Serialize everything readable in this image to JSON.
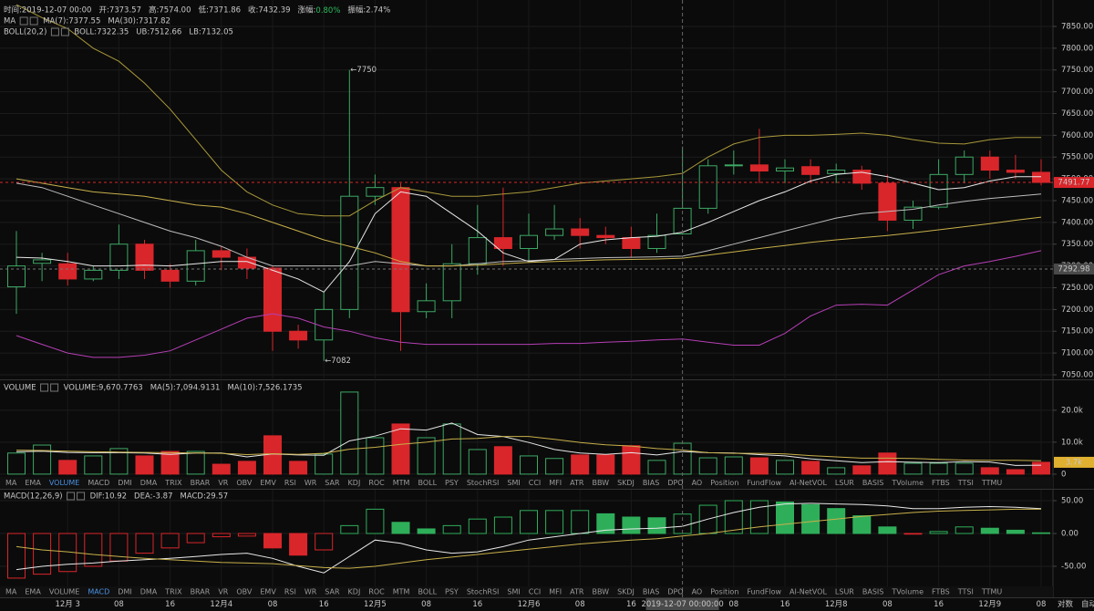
{
  "chart_data": [
    {
      "type": "candlestick",
      "info_rows": [
        [
          {
            "text": "时间:2019-12-07 00:00",
            "color": "#d8d8d8"
          },
          {
            "text": "开:7373.57",
            "color": "#d8d8d8"
          },
          {
            "text": "高:7574.00",
            "color": "#d8d8d8"
          },
          {
            "text": "低:7371.86",
            "color": "#d8d8d8"
          },
          {
            "text": "收:7432.39",
            "color": "#d8d8d8"
          },
          {
            "text": "涨幅:",
            "value": "0.80%",
            "color": "#d8d8d8",
            "value_color": "#2ebd5e"
          },
          {
            "text": "振幅:2.74%",
            "color": "#d8d8d8"
          }
        ],
        [
          {
            "text": "MA",
            "color": "#d8d8d8"
          },
          {
            "text": "MA(7):7377.55",
            "color": "#d8d8d8"
          },
          {
            "text": "MA(30):7317.82",
            "color": "#e0c050"
          }
        ],
        [
          {
            "text": "BOLL(20,2)",
            "color": "#d8d8d8"
          },
          {
            "text": "BOLL:7322.35",
            "color": "#d8d8d8"
          },
          {
            "text": "UB:7512.66",
            "color": "#e0c050"
          },
          {
            "text": "LB:7132.05",
            "color": "#c94fc9"
          }
        ]
      ],
      "categories": [
        null,
        null,
        "12月 3",
        null,
        "08",
        null,
        "16",
        null,
        "12月4",
        null,
        "08",
        null,
        "16",
        null,
        "12月5",
        null,
        "08",
        null,
        "16",
        null,
        "12月6",
        null,
        "08",
        null,
        "16",
        null,
        "2019-12-07 00:00:00",
        null,
        "08",
        null,
        "16",
        null,
        "12月8",
        null,
        "08",
        null,
        "16",
        null,
        "12月9",
        null,
        "08"
      ],
      "open": [
        7252,
        7306,
        7305,
        7270,
        7290,
        7350,
        7290,
        7265,
        7335,
        7320,
        7295,
        7150,
        7130,
        7200,
        7460,
        7480,
        7195,
        7220,
        7305,
        7365,
        7340,
        7370,
        7385,
        7370,
        7365,
        7340,
        7373.57,
        7432.39,
        7530,
        7532,
        7518,
        7528,
        7512,
        7520,
        7490,
        7405,
        7435,
        7510,
        7550,
        7520,
        7515
      ],
      "high": [
        7380,
        7330,
        7330,
        7300,
        7395,
        7360,
        7305,
        7360,
        7345,
        7340,
        7300,
        7165,
        7240,
        7750,
        7510,
        7490,
        7260,
        7350,
        7440,
        7480,
        7420,
        7440,
        7410,
        7390,
        7390,
        7420,
        7574,
        7545,
        7565,
        7615,
        7545,
        7545,
        7535,
        7530,
        7510,
        7450,
        7545,
        7565,
        7565,
        7555,
        7545
      ],
      "low": [
        7190,
        7265,
        7255,
        7265,
        7270,
        7270,
        7250,
        7255,
        7290,
        7270,
        7105,
        7110,
        7082,
        7180,
        7440,
        7105,
        7180,
        7180,
        7280,
        7300,
        7310,
        7360,
        7340,
        7350,
        7320,
        7330,
        7371.86,
        7420,
        7510,
        7490,
        7490,
        7490,
        7490,
        7475,
        7380,
        7385,
        7430,
        7490,
        7500,
        7500,
        7485
      ],
      "close": [
        7300,
        7314,
        7270,
        7290,
        7350,
        7290,
        7265,
        7335,
        7320,
        7295,
        7150,
        7130,
        7200,
        7460,
        7480,
        7195,
        7220,
        7305,
        7365,
        7340,
        7370,
        7385,
        7370,
        7365,
        7340,
        7370,
        7432.39,
        7530,
        7532,
        7518,
        7525,
        7510,
        7520,
        7490,
        7405,
        7435,
        7510,
        7550,
        7520,
        7515,
        7491.77
      ],
      "up_color": "#3da865",
      "down_color": "#d9262b",
      "overlays": [
        {
          "color": "#a8983a",
          "values": [
            7900,
            7870,
            7845,
            7800,
            7770,
            7720,
            7660,
            7590,
            7520,
            7470,
            7440,
            7420,
            7415,
            7415,
            7450,
            7480,
            7470,
            7460,
            7460,
            7465,
            7470,
            7480,
            7490,
            7495,
            7500,
            7505,
            7512.66,
            7550,
            7580,
            7595,
            7600,
            7600,
            7602,
            7605,
            7600,
            7590,
            7582,
            7580,
            7590,
            7595,
            7595
          ]
        },
        {
          "color": "#b63fb6",
          "values": [
            7140,
            7120,
            7100,
            7090,
            7090,
            7095,
            7105,
            7130,
            7155,
            7180,
            7190,
            7180,
            7160,
            7150,
            7135,
            7125,
            7120,
            7120,
            7120,
            7120,
            7120,
            7122,
            7122,
            7125,
            7127,
            7130,
            7132.05,
            7125,
            7118,
            7118,
            7145,
            7185,
            7210,
            7212,
            7210,
            7245,
            7280,
            7300,
            7310,
            7322,
            7335
          ]
        },
        {
          "color": "#bdbdbd",
          "values": [
            7490,
            7480,
            7460,
            7440,
            7420,
            7400,
            7380,
            7365,
            7345,
            7320,
            7300,
            7300,
            7300,
            7300,
            7310,
            7305,
            7300,
            7300,
            7305,
            7310,
            7312,
            7315,
            7317,
            7319,
            7320,
            7321,
            7322.35,
            7335,
            7350,
            7365,
            7380,
            7395,
            7410,
            7420,
            7425,
            7430,
            7440,
            7448,
            7455,
            7460,
            7465
          ]
        },
        {
          "color": "#e8e8e8",
          "values": [
            7320,
            7318,
            7310,
            7300,
            7300,
            7302,
            7300,
            7305,
            7310,
            7310,
            7290,
            7270,
            7240,
            7310,
            7420,
            7470,
            7460,
            7420,
            7380,
            7330,
            7310,
            7315,
            7350,
            7360,
            7365,
            7368,
            7377.55,
            7400,
            7425,
            7450,
            7470,
            7495,
            7510,
            7515,
            7505,
            7490,
            7475,
            7480,
            7495,
            7505,
            7505
          ]
        },
        {
          "color": "#c8b04a",
          "values": [
            7500,
            7490,
            7480,
            7470,
            7465,
            7460,
            7450,
            7440,
            7435,
            7420,
            7400,
            7380,
            7360,
            7345,
            7330,
            7310,
            7300,
            7300,
            7302,
            7305,
            7308,
            7310,
            7312,
            7314,
            7315,
            7316,
            7317.82,
            7325,
            7332,
            7340,
            7347,
            7354,
            7360,
            7365,
            7370,
            7376,
            7383,
            7390,
            7397,
            7405,
            7412
          ]
        }
      ],
      "ylim": [
        7041.6,
        7910.7
      ],
      "yticks": [
        {
          "value": 7050,
          "label": "7050.00"
        },
        {
          "value": 7100,
          "label": "7100.00"
        },
        {
          "value": 7150,
          "label": "7150.00"
        },
        {
          "value": 7200,
          "label": "7200.00"
        },
        {
          "value": 7250,
          "label": "7250.00"
        },
        {
          "value": 7300,
          "label": "7300.00"
        },
        {
          "value": 7350,
          "label": "7350.00"
        },
        {
          "value": 7400,
          "label": "7400.00"
        },
        {
          "value": 7450,
          "label": "7450.00"
        },
        {
          "value": 7500,
          "label": "7500.00"
        },
        {
          "value": 7550,
          "label": "7550.00"
        },
        {
          "value": 7600,
          "label": "7600.00"
        },
        {
          "value": 7650,
          "label": "7650.00"
        },
        {
          "value": 7700,
          "label": "7700.00"
        },
        {
          "value": 7750,
          "label": "7750.00"
        },
        {
          "value": 7800,
          "label": "7800.00"
        },
        {
          "value": 7850,
          "label": "7850.00"
        }
      ],
      "annotations": [
        {
          "value": 7750,
          "label": "←7750"
        },
        {
          "value": 7082,
          "label": "←7082"
        }
      ],
      "last_price": {
        "value": 7491.77,
        "label": "7491.77"
      },
      "crosshair_price": {
        "value": 7292.98,
        "label": "7292.98"
      }
    },
    {
      "type": "volume",
      "info_rows": [
        [
          {
            "text": "VOLUME",
            "color": "#d8d8d8"
          },
          {
            "text": "VOLUME:9,670.7763",
            "color": "#d8d8d8"
          },
          {
            "text": "MA(5):7,094.9131",
            "color": "#d8d8d8"
          },
          {
            "text": "MA(10):7,526.1735",
            "color": "#e0c050"
          }
        ]
      ],
      "values": [
        6600,
        9100,
        4300,
        5700,
        8000,
        5700,
        7100,
        7100,
        3100,
        4000,
        12000,
        4000,
        6300,
        25700,
        11400,
        15700,
        11400,
        15700,
        7700,
        8600,
        5700,
        4900,
        6000,
        6000,
        8900,
        4300,
        9670.7763,
        5100,
        5400,
        5100,
        4300,
        4000,
        2000,
        2600,
        6600,
        3400,
        3400,
        3400,
        2000,
        1400,
        3700
      ],
      "up_color": "#3da865",
      "down_color": "#d9262b",
      "overlays": [
        {
          "color": "#e8e8e8",
          "values": [
            7000,
            7200,
            6800,
            6700,
            6700,
            6600,
            6200,
            6600,
            6600,
            5400,
            6300,
            6000,
            5900,
            10400,
            11900,
            14200,
            13800,
            16000,
            12400,
            11800,
            9900,
            7700,
            6600,
            6200,
            6700,
            6000,
            7094.9131,
            6700,
            6600,
            6100,
            5700,
            4800,
            4200,
            3600,
            3900,
            3700,
            3600,
            3900,
            3800,
            2700,
            2800
          ]
        },
        {
          "color": "#c8b04a",
          "values": [
            7500,
            7400,
            7200,
            7000,
            6900,
            6800,
            6700,
            6600,
            6500,
            6100,
            6400,
            6200,
            6500,
            7800,
            8400,
            9300,
            10000,
            11000,
            11200,
            11800,
            11800,
            10900,
            9900,
            9200,
            8800,
            8000,
            7526.1735,
            6700,
            6500,
            6500,
            6300,
            5800,
            5400,
            5000,
            5000,
            4900,
            4600,
            4400,
            4300,
            4300,
            4200
          ]
        }
      ],
      "ylim": [
        -600,
        29100
      ],
      "yticks": [
        0,
        {
          "value": 10000,
          "label": "10.0k"
        },
        {
          "value": 20000,
          "label": "20.0k"
        }
      ],
      "last_label": {
        "value": 3700,
        "label": "3.7k"
      }
    },
    {
      "type": "macd",
      "info_rows": [
        [
          {
            "text": "MACD(12,26,9)",
            "color": "#d8d8d8"
          },
          {
            "text": "DIF:10.92",
            "color": "#d8d8d8"
          },
          {
            "text": "DEA:-3.87",
            "color": "#e0c050"
          },
          {
            "text": "MACD:29.57",
            "color": "#2ebd5e"
          }
        ]
      ],
      "values": [
        -68,
        -62,
        -58,
        -50,
        -42,
        -30,
        -22,
        -14,
        -5,
        -4,
        -22,
        -33,
        -25,
        12,
        37,
        17,
        7,
        12,
        22,
        25,
        35,
        35,
        35,
        30,
        25,
        24,
        29.57,
        43,
        50,
        50,
        48,
        44,
        38,
        27,
        10,
        -1,
        3,
        10,
        8,
        5,
        1
      ],
      "up_color": "#2fae5a",
      "down_color": "#d9262b",
      "overlays": [
        {
          "color": "#e8e8e8",
          "values": [
            -55,
            -50,
            -47,
            -45,
            -42,
            -40,
            -38,
            -35,
            -32,
            -30,
            -38,
            -50,
            -60,
            -35,
            -10,
            -15,
            -25,
            -30,
            -28,
            -20,
            -10,
            -5,
            0,
            5,
            7,
            8,
            10.92,
            22,
            32,
            40,
            45,
            46,
            45,
            44,
            42,
            38,
            38,
            40,
            41,
            40,
            38
          ]
        },
        {
          "color": "#c8b04a",
          "values": [
            -20,
            -25,
            -28,
            -32,
            -35,
            -38,
            -40,
            -42,
            -44,
            -45,
            -46,
            -49,
            -52,
            -53,
            -50,
            -45,
            -40,
            -36,
            -32,
            -28,
            -24,
            -20,
            -16,
            -13,
            -10,
            -8,
            -3.87,
            0,
            5,
            10,
            14,
            18,
            22,
            26,
            29,
            32,
            34,
            35,
            36,
            37,
            37
          ]
        }
      ],
      "ylim": [
        -80.6,
        66.7
      ],
      "yticks": [
        {
          "value": -50,
          "label": "-50.00"
        },
        {
          "value": 0,
          "label": "0.00"
        },
        {
          "value": 50,
          "label": "50.00"
        }
      ]
    }
  ],
  "tab_rows": [
    {
      "items": [
        "MA",
        "EMA",
        "VOLUME",
        "MACD",
        "DMI",
        "DMA",
        "TRIX",
        "BRAR",
        "VR",
        "OBV",
        "EMV",
        "RSI",
        "WR",
        "SAR",
        "KDJ",
        "ROC",
        "MTM",
        "BOLL",
        "PSY",
        "StochRSI",
        "SMI",
        "CCI",
        "MFI",
        "ATR",
        "BBW",
        "SKDJ",
        "BIAS",
        "DPO",
        "AO",
        "Position",
        "FundFlow",
        "AI-NetVOL",
        "LSUR",
        "BASIS",
        "TVolume",
        "FTBS",
        "TTSI",
        "TTMU"
      ],
      "active": 2
    },
    {
      "items": [
        "MA",
        "EMA",
        "VOLUME",
        "MACD",
        "DMI",
        "DMA",
        "TRIX",
        "BRAR",
        "VR",
        "OBV",
        "EMV",
        "RSI",
        "WR",
        "SAR",
        "KDJ",
        "ROC",
        "MTM",
        "BOLL",
        "PSY",
        "StochRSI",
        "SMI",
        "CCI",
        "MFI",
        "ATR",
        "BBW",
        "SKDJ",
        "BIAS",
        "DPO",
        "AO",
        "Position",
        "FundFlow",
        "AI-NetVOL",
        "LSUR",
        "BASIS",
        "TVolume",
        "FTBS",
        "TTSI",
        "TTMU"
      ],
      "active": 3
    }
  ],
  "scale_buttons": {
    "items": [
      "对数",
      "自动"
    ],
    "active": 1
  }
}
